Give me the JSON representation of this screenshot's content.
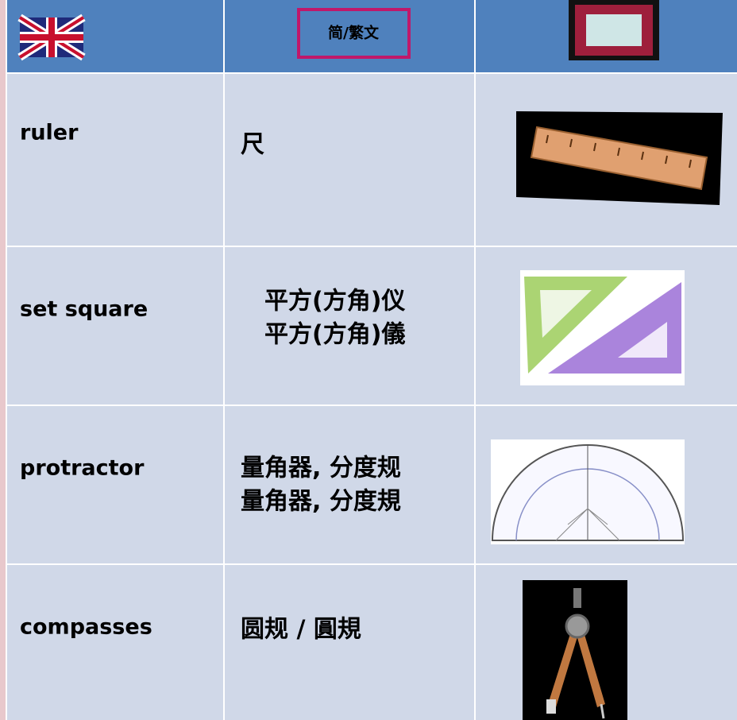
{
  "header": {
    "language_toggle": "简/繁文"
  },
  "table": {
    "rows": [
      {
        "english": "ruler",
        "chinese": [
          "尺"
        ]
      },
      {
        "english": "set square",
        "chinese": [
          "平方(方角)仪",
          "平方(方角)儀"
        ]
      },
      {
        "english": "protractor",
        "chinese": [
          "量角器, 分度规",
          "量角器, 分度規"
        ]
      },
      {
        "english": "compasses",
        "chinese": [
          "圆规 / 圓規"
        ]
      }
    ]
  }
}
